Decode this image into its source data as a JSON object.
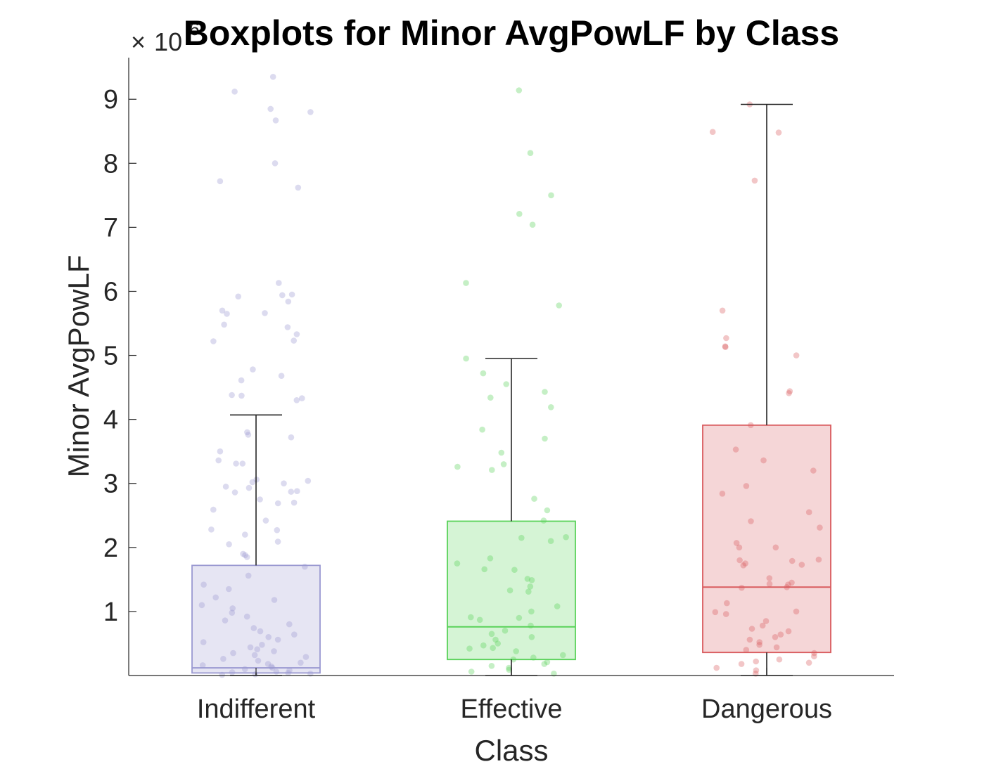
{
  "chart_data": {
    "type": "boxplot",
    "title": "Boxplots for Minor AvgPowLF by Class",
    "xlabel": "Class",
    "ylabel": "Minor AvgPowLF",
    "y_multiplier": {
      "base": "10",
      "exponent": "6",
      "symbol": "×"
    },
    "ylim": [
      0,
      9650000
    ],
    "yticks": [
      1,
      2,
      3,
      4,
      5,
      6,
      7,
      8,
      9
    ],
    "categories": [
      "Indifferent",
      "Effective",
      "Dangerous"
    ],
    "series": [
      {
        "name": "Indifferent",
        "color": "#9a99d1",
        "whisker_low": 0,
        "q1": 40000,
        "median": 120000,
        "q3": 1720000,
        "whisker_high": 4070000,
        "points": [
          9350000,
          9120000,
          8850000,
          8800000,
          8670000,
          8000000,
          7720000,
          7620000,
          6130000,
          5950000,
          5940000,
          5920000,
          5840000,
          5700000,
          5660000,
          5650000,
          5480000,
          5440000,
          5330000,
          5230000,
          5220000,
          4780000,
          4680000,
          4610000,
          4380000,
          4370000,
          4330000,
          4300000,
          3800000,
          3760000,
          3720000,
          3500000,
          3360000,
          3310000,
          3310000,
          3060000,
          3040000,
          3020000,
          3000000,
          2950000,
          2930000,
          2880000,
          2870000,
          2860000,
          2750000,
          2700000,
          2690000,
          2590000,
          2420000,
          2280000,
          2270000,
          2200000,
          2090000,
          2050000,
          1900000,
          1880000,
          1850000,
          1700000,
          1560000,
          1420000,
          1350000,
          1220000,
          1180000,
          1100000,
          1050000,
          980000,
          920000,
          860000,
          800000,
          740000,
          690000,
          640000,
          600000,
          560000,
          520000,
          480000,
          440000,
          410000,
          380000,
          350000,
          320000,
          290000,
          260000,
          230000,
          200000,
          180000,
          160000,
          140000,
          120000,
          100000,
          80000,
          60000,
          50000,
          40000,
          30000,
          20000,
          10000
        ]
      },
      {
        "name": "Effective",
        "color": "#59d259",
        "whisker_low": 0,
        "q1": 250000,
        "median": 760000,
        "q3": 2410000,
        "whisker_high": 4950000,
        "points": [
          9140000,
          8160000,
          7500000,
          7210000,
          7040000,
          6130000,
          5780000,
          4950000,
          4720000,
          4550000,
          4430000,
          4340000,
          4190000,
          3840000,
          3700000,
          3480000,
          3300000,
          3260000,
          3210000,
          2760000,
          2580000,
          2420000,
          2160000,
          2150000,
          2100000,
          1830000,
          1750000,
          1660000,
          1650000,
          1510000,
          1490000,
          1390000,
          1330000,
          1310000,
          1080000,
          1000000,
          910000,
          900000,
          870000,
          780000,
          700000,
          650000,
          600000,
          560000,
          500000,
          470000,
          430000,
          420000,
          380000,
          320000,
          280000,
          250000,
          210000,
          180000,
          150000,
          120000,
          90000,
          60000,
          30000
        ]
      },
      {
        "name": "Dangerous",
        "color": "#d95b5e",
        "whisker_low": 0,
        "q1": 360000,
        "median": 1380000,
        "q3": 3910000,
        "whisker_high": 8920000,
        "points": [
          8920000,
          8490000,
          8480000,
          7730000,
          5700000,
          5270000,
          5140000,
          5130000,
          5000000,
          4440000,
          4410000,
          3910000,
          3530000,
          3360000,
          3200000,
          2960000,
          2840000,
          2550000,
          2410000,
          2310000,
          2070000,
          2000000,
          2000000,
          1810000,
          1800000,
          1790000,
          1750000,
          1730000,
          1720000,
          1520000,
          1450000,
          1430000,
          1420000,
          1380000,
          1370000,
          1130000,
          1000000,
          990000,
          960000,
          850000,
          780000,
          730000,
          690000,
          640000,
          600000,
          560000,
          520000,
          480000,
          440000,
          400000,
          350000,
          300000,
          250000,
          220000,
          200000,
          180000,
          120000,
          80000,
          30000
        ]
      }
    ]
  }
}
